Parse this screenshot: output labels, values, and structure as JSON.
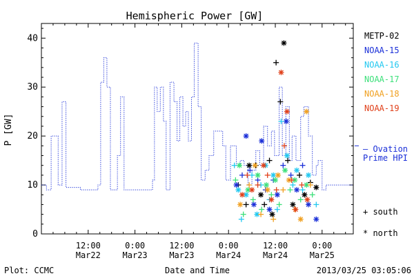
{
  "chart_data": {
    "type": "scatter",
    "title": "Hemispheric Power [GW]",
    "xlabel": "Date and Time",
    "ylabel": "P [GW]",
    "ylim": [
      0,
      43
    ],
    "xlim_hours": [
      0,
      80
    ],
    "x_ticks": [
      {
        "hour": 12,
        "line1": "12:00",
        "line2": "Mar22"
      },
      {
        "hour": 24,
        "line1": "0:00",
        "line2": "Mar23"
      },
      {
        "hour": 36,
        "line1": "12:00",
        "line2": "Mar23"
      },
      {
        "hour": 48,
        "line1": "0:00",
        "line2": "Mar24"
      },
      {
        "hour": 60,
        "line1": "12:00",
        "line2": "Mar24"
      },
      {
        "hour": 72,
        "line1": "0:00",
        "line2": "Mar25"
      }
    ],
    "y_ticks": [
      0,
      10,
      20,
      30,
      40
    ],
    "footer_left": "Plot: CCMC",
    "footer_right": "2013/03/25 03:05:06",
    "legend": {
      "satellites": [
        {
          "name": "METP-02",
          "color": "#000000"
        },
        {
          "name": "NOAA-15",
          "color": "#1a2fd8"
        },
        {
          "name": "NOAA-16",
          "color": "#22c8f0"
        },
        {
          "name": "NOAA-17",
          "color": "#3ce07a"
        },
        {
          "name": "NOAA-18",
          "color": "#f0a020"
        },
        {
          "name": "NOAA-19",
          "color": "#e0401a"
        }
      ],
      "ovation_line1": "— Ovation",
      "ovation_line2": "Prime HPI",
      "ovation_color": "#1a2fd8",
      "south_label": "+ south",
      "north_label": "* north"
    },
    "ovation_steps": [
      [
        0,
        10
      ],
      [
        1.3,
        9
      ],
      [
        2.5,
        20
      ],
      [
        4.3,
        10
      ],
      [
        5.3,
        27
      ],
      [
        6.3,
        9.5
      ],
      [
        10,
        9
      ],
      [
        13,
        9
      ],
      [
        14.5,
        10
      ],
      [
        15.2,
        31
      ],
      [
        16,
        36
      ],
      [
        16.8,
        30
      ],
      [
        17.7,
        9
      ],
      [
        19.5,
        16
      ],
      [
        20.3,
        28
      ],
      [
        21.2,
        9
      ],
      [
        25,
        9
      ],
      [
        27,
        9
      ],
      [
        28.5,
        11
      ],
      [
        29,
        30
      ],
      [
        29.7,
        25
      ],
      [
        30.5,
        30
      ],
      [
        31.3,
        23
      ],
      [
        32,
        9
      ],
      [
        33,
        31
      ],
      [
        34,
        27
      ],
      [
        34.8,
        19
      ],
      [
        35.5,
        28
      ],
      [
        36.3,
        22
      ],
      [
        37,
        25
      ],
      [
        37.7,
        19
      ],
      [
        38.5,
        28
      ],
      [
        39.2,
        39
      ],
      [
        40.2,
        26
      ],
      [
        41,
        11
      ],
      [
        42,
        13
      ],
      [
        43,
        16
      ],
      [
        44.2,
        21
      ],
      [
        46.5,
        18
      ],
      [
        47.3,
        11
      ],
      [
        48.5,
        18
      ],
      [
        50,
        14
      ],
      [
        51,
        15
      ],
      [
        52,
        14
      ],
      [
        53,
        10
      ],
      [
        54,
        13
      ],
      [
        55,
        17
      ],
      [
        56,
        14
      ],
      [
        57,
        22
      ],
      [
        58,
        18
      ],
      [
        59,
        21
      ],
      [
        59.8,
        16
      ],
      [
        61,
        30
      ],
      [
        61.8,
        16
      ],
      [
        62.7,
        26
      ],
      [
        63.6,
        15
      ],
      [
        64.3,
        20
      ],
      [
        65.3,
        15
      ],
      [
        66.5,
        24
      ],
      [
        67.3,
        26
      ],
      [
        68.5,
        20
      ],
      [
        69.5,
        12
      ],
      [
        70.5,
        14
      ],
      [
        71,
        15
      ],
      [
        72,
        9
      ],
      [
        73,
        10
      ],
      [
        80,
        10
      ]
    ],
    "series": [
      {
        "name": "METP-02",
        "color": "#000000",
        "points": [
          {
            "x": 50.5,
            "y": 10,
            "m": "+"
          },
          {
            "x": 52.5,
            "y": 6,
            "m": "+"
          },
          {
            "x": 53.3,
            "y": 14,
            "m": "*"
          },
          {
            "x": 55,
            "y": 14,
            "m": "+"
          },
          {
            "x": 56.3,
            "y": 8,
            "m": "*"
          },
          {
            "x": 57.2,
            "y": 6,
            "m": "+"
          },
          {
            "x": 58.5,
            "y": 15,
            "m": "+"
          },
          {
            "x": 59.2,
            "y": 4,
            "m": "*"
          },
          {
            "x": 60.2,
            "y": 35,
            "m": "+"
          },
          {
            "x": 61.3,
            "y": 27,
            "m": "+"
          },
          {
            "x": 62.2,
            "y": 39,
            "m": "*"
          },
          {
            "x": 63.2,
            "y": 15,
            "m": "+"
          },
          {
            "x": 64.5,
            "y": 6,
            "m": "*"
          },
          {
            "x": 66.2,
            "y": 12,
            "m": "+"
          },
          {
            "x": 67.5,
            "y": 8,
            "m": "*"
          },
          {
            "x": 69,
            "y": 10.5,
            "m": "+"
          },
          {
            "x": 70.5,
            "y": 9.5,
            "m": "*"
          }
        ]
      },
      {
        "name": "NOAA-15",
        "color": "#1a2fd8",
        "points": [
          {
            "x": 50,
            "y": 10,
            "m": "*"
          },
          {
            "x": 51.5,
            "y": 12,
            "m": "+"
          },
          {
            "x": 52.5,
            "y": 20,
            "m": "*"
          },
          {
            "x": 53.5,
            "y": 13,
            "m": "+"
          },
          {
            "x": 54.5,
            "y": 6,
            "m": "*"
          },
          {
            "x": 55.5,
            "y": 11,
            "m": "+"
          },
          {
            "x": 56.5,
            "y": 19,
            "m": "*"
          },
          {
            "x": 57.5,
            "y": 9,
            "m": "+"
          },
          {
            "x": 58.5,
            "y": 5,
            "m": "*"
          },
          {
            "x": 59.5,
            "y": 11,
            "m": "+"
          },
          {
            "x": 60.5,
            "y": 8,
            "m": "*"
          },
          {
            "x": 62,
            "y": 14,
            "m": "+"
          },
          {
            "x": 62.8,
            "y": 23,
            "m": "*"
          },
          {
            "x": 64,
            "y": 12,
            "m": "+"
          },
          {
            "x": 65.5,
            "y": 9,
            "m": "*"
          },
          {
            "x": 67,
            "y": 14,
            "m": "+"
          },
          {
            "x": 68.5,
            "y": 6,
            "m": "*"
          },
          {
            "x": 70.5,
            "y": 3,
            "m": "*"
          }
        ]
      },
      {
        "name": "NOAA-16",
        "color": "#22c8f0",
        "points": [
          {
            "x": 49.5,
            "y": 14,
            "m": "+"
          },
          {
            "x": 50.5,
            "y": 9,
            "m": "*"
          },
          {
            "x": 51.3,
            "y": 3,
            "m": "+"
          },
          {
            "x": 52.5,
            "y": 8,
            "m": "*"
          },
          {
            "x": 54,
            "y": 12,
            "m": "+"
          },
          {
            "x": 55.3,
            "y": 4,
            "m": "*"
          },
          {
            "x": 56.3,
            "y": 10,
            "m": "+"
          },
          {
            "x": 57.5,
            "y": 14,
            "m": "*"
          },
          {
            "x": 58.5,
            "y": 7,
            "m": "+"
          },
          {
            "x": 59.5,
            "y": 12,
            "m": "*"
          },
          {
            "x": 60.5,
            "y": 5,
            "m": "+"
          },
          {
            "x": 61.5,
            "y": 23,
            "m": "+"
          },
          {
            "x": 63,
            "y": 16,
            "m": "*"
          },
          {
            "x": 64.5,
            "y": 10,
            "m": "+"
          },
          {
            "x": 65.5,
            "y": 13,
            "m": "*"
          },
          {
            "x": 67,
            "y": 9,
            "m": "+"
          },
          {
            "x": 68.5,
            "y": 12,
            "m": "*"
          },
          {
            "x": 70.5,
            "y": 6,
            "m": "+"
          }
        ]
      },
      {
        "name": "NOAA-17",
        "color": "#3ce07a",
        "points": [
          {
            "x": 49.8,
            "y": 11,
            "m": "+"
          },
          {
            "x": 50.8,
            "y": 14,
            "m": "*"
          },
          {
            "x": 51.8,
            "y": 4,
            "m": "+"
          },
          {
            "x": 53,
            "y": 9,
            "m": "*"
          },
          {
            "x": 54.3,
            "y": 7,
            "m": "+"
          },
          {
            "x": 55.5,
            "y": 12,
            "m": "*"
          },
          {
            "x": 56.5,
            "y": 5,
            "m": "+"
          },
          {
            "x": 57.7,
            "y": 10,
            "m": "*"
          },
          {
            "x": 59,
            "y": 8,
            "m": "+"
          },
          {
            "x": 60,
            "y": 11,
            "m": "*"
          },
          {
            "x": 61,
            "y": 6,
            "m": "+"
          },
          {
            "x": 62.5,
            "y": 13,
            "m": "*"
          },
          {
            "x": 63.8,
            "y": 9,
            "m": "+"
          },
          {
            "x": 65,
            "y": 11,
            "m": "*"
          },
          {
            "x": 66.5,
            "y": 7,
            "m": "+"
          },
          {
            "x": 68,
            "y": 10,
            "m": "*"
          },
          {
            "x": 69.5,
            "y": 8,
            "m": "+"
          }
        ]
      },
      {
        "name": "NOAA-18",
        "color": "#f0a020",
        "points": [
          {
            "x": 51,
            "y": 6,
            "m": "*"
          },
          {
            "x": 53.3,
            "y": 10,
            "m": "+"
          },
          {
            "x": 54.8,
            "y": 14,
            "m": "*"
          },
          {
            "x": 56.3,
            "y": 4,
            "m": "+"
          },
          {
            "x": 58,
            "y": 9,
            "m": "*"
          },
          {
            "x": 59.5,
            "y": 3,
            "m": "+"
          },
          {
            "x": 60.7,
            "y": 12,
            "m": "*"
          },
          {
            "x": 62,
            "y": 9,
            "m": "+"
          },
          {
            "x": 63.5,
            "y": 11,
            "m": "*"
          },
          {
            "x": 65,
            "y": 5,
            "m": "+"
          },
          {
            "x": 66.5,
            "y": 3,
            "m": "*"
          },
          {
            "x": 68,
            "y": 25,
            "m": "*"
          },
          {
            "x": 69,
            "y": 10,
            "m": "+"
          }
        ]
      },
      {
        "name": "NOAA-19",
        "color": "#e0401a",
        "points": [
          {
            "x": 51.5,
            "y": 8,
            "m": "*"
          },
          {
            "x": 52.8,
            "y": 12,
            "m": "+"
          },
          {
            "x": 54,
            "y": 9,
            "m": "*"
          },
          {
            "x": 55.5,
            "y": 10,
            "m": "+"
          },
          {
            "x": 57,
            "y": 14,
            "m": "*"
          },
          {
            "x": 58,
            "y": 12,
            "m": "+"
          },
          {
            "x": 59,
            "y": 7,
            "m": "*"
          },
          {
            "x": 60.3,
            "y": 9,
            "m": "+"
          },
          {
            "x": 61.5,
            "y": 33,
            "m": "*"
          },
          {
            "x": 62.3,
            "y": 18,
            "m": "+"
          },
          {
            "x": 63,
            "y": 25,
            "m": "*"
          },
          {
            "x": 64.2,
            "y": 11,
            "m": "+"
          },
          {
            "x": 65.2,
            "y": 5,
            "m": "*"
          },
          {
            "x": 66.8,
            "y": 10,
            "m": "+"
          },
          {
            "x": 68.2,
            "y": 7,
            "m": "*"
          }
        ]
      }
    ]
  }
}
